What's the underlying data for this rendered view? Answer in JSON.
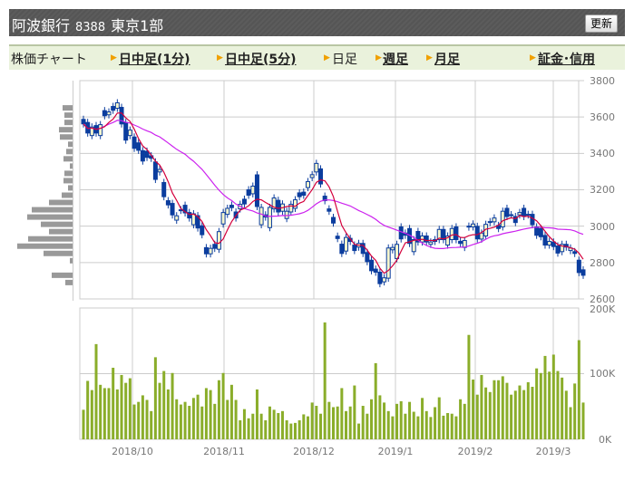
{
  "header": {
    "company": "阿波銀行",
    "code": "8388",
    "market": "東京1部",
    "refresh_label": "更新"
  },
  "nav": {
    "label": "株価チャート",
    "items": [
      {
        "label": "日中足(1分)",
        "link": true
      },
      {
        "label": "日中足(5分)",
        "link": true
      },
      {
        "label": "日足",
        "link": false
      },
      {
        "label": "週足",
        "link": true
      },
      {
        "label": "月足",
        "link": true
      },
      {
        "label": "証金･信用",
        "link": true
      }
    ]
  },
  "colors": {
    "candle": "#0b3d9e",
    "candle_hollow_fill": "#f6f6cc",
    "ma_short": "#d4003c",
    "ma_long": "#cc22ee",
    "volume": "#8aad2a",
    "profile": "#999999",
    "accent_arrow": "#f0a000"
  },
  "chart_data": [
    {
      "type": "candlestick",
      "title": "",
      "y_ticks": [
        "3800",
        "3600",
        "3400",
        "3200",
        "3000",
        "2800",
        "2600"
      ],
      "ylim": [
        2600,
        3800
      ],
      "x_ticks": [
        "2018/10",
        "2018/11",
        "2018/12",
        "2019/1",
        "2019/2",
        "2019/3"
      ],
      "moving_averages": [
        "short",
        "long"
      ],
      "open": [
        3587,
        3570,
        3498,
        3553,
        3498,
        3635,
        3612,
        3658,
        3648,
        3653,
        3570,
        3498,
        3490,
        3458,
        3415,
        3412,
        3387,
        3353,
        3298,
        3240,
        3140,
        3125,
        3033,
        3090,
        3115,
        3075,
        3008,
        3058,
        3002,
        2882,
        2848,
        2900,
        2873,
        3012,
        3065,
        3115,
        3078,
        3095,
        3148,
        3200,
        3178,
        3282,
        3008,
        3062,
        2992,
        3095,
        3142,
        3082,
        3042,
        3078,
        3098,
        3183,
        3187,
        3212,
        3267,
        3298,
        3315,
        3165,
        3095,
        3048,
        2945,
        2901,
        2863,
        2933,
        2896,
        2885,
        2905,
        2855,
        2813,
        2764,
        2747,
        2694,
        2714,
        2870,
        2822,
        2996,
        2962,
        2987,
        2860,
        2971,
        2913,
        2946,
        2900,
        2926,
        2926,
        2982,
        2896,
        2926,
        2996,
        2917,
        2883,
        2995,
        2996,
        2999,
        2929,
        2946,
        3020,
        3024,
        3004,
        2996,
        3098,
        3062,
        3053,
        3062,
        3098,
        3065,
        3065,
        2996,
        2987,
        2949,
        2896,
        2913,
        2891,
        2860,
        2900,
        2866,
        2860,
        2813,
        2760
      ],
      "close": [
        3562,
        3512,
        3545,
        3512,
        3558,
        3607,
        3628,
        3637,
        3678,
        3562,
        3473,
        3528,
        3428,
        3417,
        3358,
        3378,
        3373,
        3257,
        3312,
        3162,
        3117,
        3062,
        3057,
        3087,
        3073,
        3045,
        3068,
        2990,
        2953,
        2848,
        2878,
        2878,
        2970,
        3075,
        3098,
        3102,
        3045,
        3120,
        3122,
        3170,
        3220,
        3108,
        3103,
        3050,
        3103,
        3155,
        3078,
        3122,
        3082,
        3120,
        3145,
        3162,
        3170,
        3245,
        3283,
        3345,
        3232,
        3140,
        3082,
        3017,
        2932,
        2850,
        2938,
        2916,
        2866,
        2905,
        2850,
        2805,
        2755,
        2747,
        2684,
        2716,
        2880,
        2883,
        2900,
        2930,
        2950,
        2905,
        2926,
        2913,
        2946,
        2913,
        2913,
        2916,
        2982,
        2926,
        2946,
        2987,
        2926,
        2905,
        2921,
        3000,
        3012,
        2930,
        2962,
        3010,
        3025,
        3045,
        2987,
        3082,
        3053,
        3063,
        3020,
        3075,
        3053,
        3062,
        3008,
        2950,
        2942,
        2896,
        2916,
        2888,
        2852,
        2900,
        2885,
        2880,
        2850,
        2745,
        2730
      ],
      "price_profile": {
        "price_bins": [
          3680,
          3640,
          3600,
          3560,
          3520,
          3480,
          3440,
          3400,
          3360,
          3320,
          3280,
          3240,
          3200,
          3160,
          3120,
          3080,
          3040,
          3000,
          2960,
          2920,
          2880,
          2840,
          2800,
          2760,
          2720
        ],
        "relative_volume": [
          11,
          9,
          9,
          15,
          14,
          5,
          7,
          10,
          3,
          9,
          10,
          5,
          12,
          26,
          45,
          50,
          35,
          26,
          49,
          61,
          32,
          3,
          0,
          23,
          8
        ]
      }
    },
    {
      "type": "bar",
      "title": "",
      "y_ticks": [
        "200K",
        "100K",
        "0K"
      ],
      "ylim": [
        0,
        200
      ],
      "unit": "K",
      "values": [
        45,
        89,
        75,
        145,
        83,
        78,
        78,
        109,
        76,
        98,
        86,
        93,
        53,
        57,
        67,
        60,
        43,
        125,
        86,
        104,
        76,
        101,
        61,
        53,
        57,
        51,
        63,
        68,
        50,
        78,
        75,
        54,
        90,
        101,
        60,
        83,
        60,
        29,
        46,
        32,
        39,
        76,
        39,
        29,
        50,
        45,
        40,
        43,
        29,
        24,
        25,
        29,
        38,
        35,
        56,
        51,
        39,
        178,
        57,
        49,
        50,
        78,
        43,
        50,
        82,
        24,
        51,
        39,
        61,
        116,
        67,
        56,
        43,
        35,
        54,
        58,
        39,
        57,
        42,
        35,
        63,
        43,
        34,
        49,
        64,
        36,
        40,
        39,
        35,
        61,
        54,
        159,
        91,
        68,
        98,
        79,
        72,
        90,
        90,
        96,
        86,
        68,
        74,
        82,
        75,
        87,
        80,
        108,
        101,
        127,
        103,
        129,
        104,
        94,
        74,
        49,
        85,
        151,
        56
      ]
    }
  ]
}
